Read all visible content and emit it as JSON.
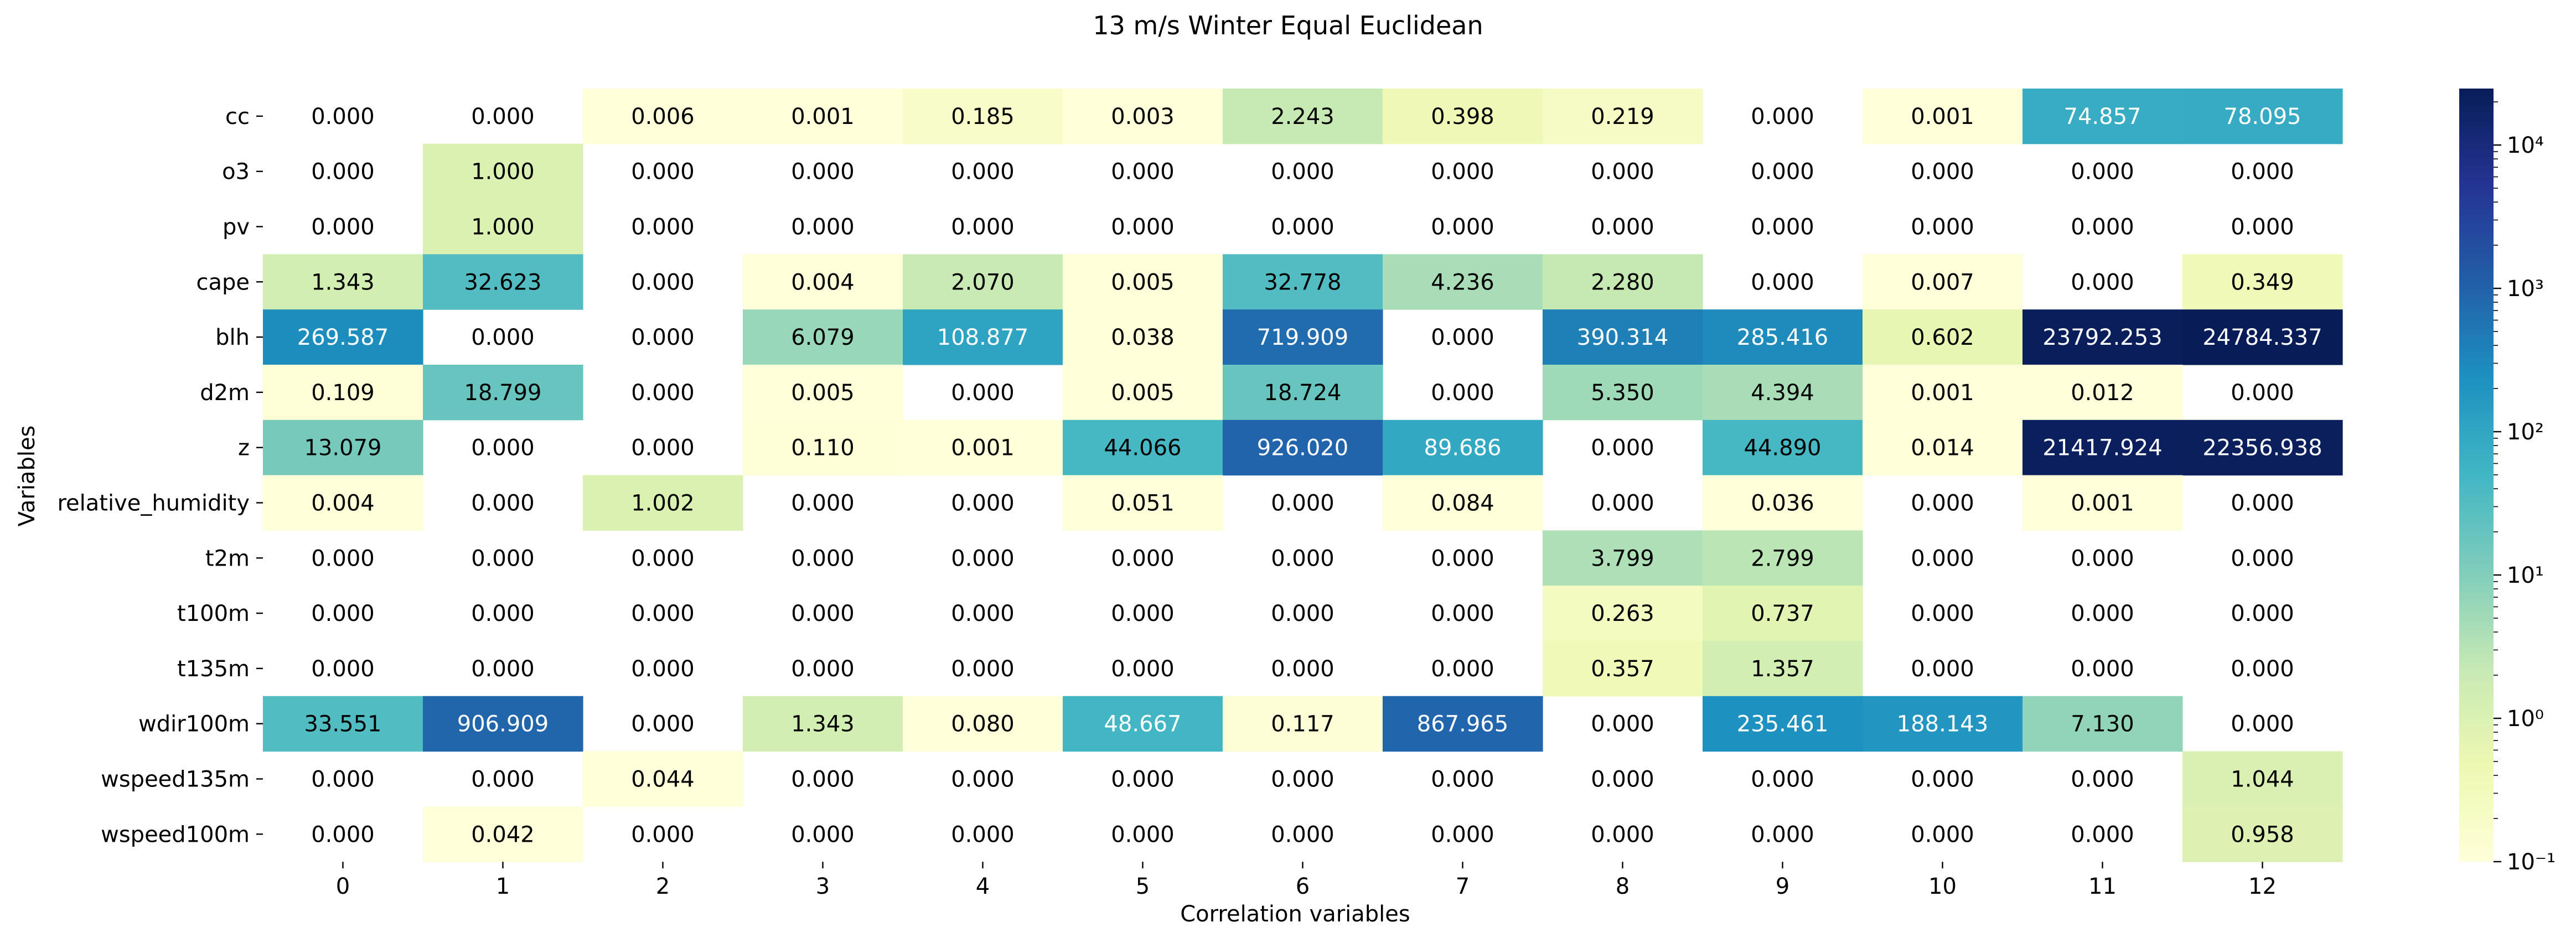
{
  "chart_data": {
    "type": "heatmap",
    "title": "13 m/s Winter Equal Euclidean",
    "xlabel": "Correlation variables",
    "ylabel": "Variables",
    "x_categories": [
      "0",
      "1",
      "2",
      "3",
      "4",
      "5",
      "6",
      "7",
      "8",
      "9",
      "10",
      "11",
      "12"
    ],
    "y_categories": [
      "cc",
      "o3",
      "pv",
      "cape",
      "blh",
      "d2m",
      "z",
      "relative_humidity",
      "t2m",
      "t100m",
      "t135m",
      "wdir100m",
      "wspeed135m",
      "wspeed100m"
    ],
    "values": [
      [
        0.0,
        0.0,
        0.006,
        0.001,
        0.185,
        0.003,
        2.243,
        0.398,
        0.219,
        0.0,
        0.001,
        74.857,
        78.095
      ],
      [
        0.0,
        1.0,
        0.0,
        0.0,
        0.0,
        0.0,
        0.0,
        0.0,
        0.0,
        0.0,
        0.0,
        0.0,
        0.0
      ],
      [
        0.0,
        1.0,
        0.0,
        0.0,
        0.0,
        0.0,
        0.0,
        0.0,
        0.0,
        0.0,
        0.0,
        0.0,
        0.0
      ],
      [
        1.343,
        32.623,
        0.0,
        0.004,
        2.07,
        0.005,
        32.778,
        4.236,
        2.28,
        0.0,
        0.007,
        0.0,
        0.349
      ],
      [
        269.587,
        0.0,
        0.0,
        6.079,
        108.877,
        0.038,
        719.909,
        0.0,
        390.314,
        285.416,
        0.602,
        23792.253,
        24784.337
      ],
      [
        0.109,
        18.799,
        0.0,
        0.005,
        0.0,
        0.005,
        18.724,
        0.0,
        5.35,
        4.394,
        0.001,
        0.012,
        0.0
      ],
      [
        13.079,
        0.0,
        0.0,
        0.11,
        0.001,
        44.066,
        926.02,
        89.686,
        0.0,
        44.89,
        0.014,
        21417.924,
        22356.938
      ],
      [
        0.004,
        0.0,
        1.002,
        0.0,
        0.0,
        0.051,
        0.0,
        0.084,
        0.0,
        0.036,
        0.0,
        0.001,
        0.0
      ],
      [
        0.0,
        0.0,
        0.0,
        0.0,
        0.0,
        0.0,
        0.0,
        0.0,
        3.799,
        2.799,
        0.0,
        0.0,
        0.0
      ],
      [
        0.0,
        0.0,
        0.0,
        0.0,
        0.0,
        0.0,
        0.0,
        0.0,
        0.263,
        0.737,
        0.0,
        0.0,
        0.0
      ],
      [
        0.0,
        0.0,
        0.0,
        0.0,
        0.0,
        0.0,
        0.0,
        0.0,
        0.357,
        1.357,
        0.0,
        0.0,
        0.0
      ],
      [
        33.551,
        906.909,
        0.0,
        1.343,
        0.08,
        48.667,
        0.117,
        867.965,
        0.0,
        235.461,
        188.143,
        7.13,
        0.0
      ],
      [
        0.0,
        0.0,
        0.044,
        0.0,
        0.0,
        0.0,
        0.0,
        0.0,
        0.0,
        0.0,
        0.0,
        0.0,
        1.044
      ],
      [
        0.0,
        0.042,
        0.0,
        0.0,
        0.0,
        0.0,
        0.0,
        0.0,
        0.0,
        0.0,
        0.0,
        0.0,
        0.958
      ]
    ],
    "value_format": "3 decimals",
    "colorbar": {
      "scale": "log",
      "colormap": "YlGnBu",
      "range": [
        0.1,
        24784.337
      ],
      "ticks": [
        0.1,
        1,
        10,
        100,
        1000,
        10000
      ],
      "tick_labels": [
        "10⁻¹",
        "10⁰",
        "10¹",
        "10²",
        "10³",
        "10⁴"
      ]
    },
    "empty_cells": "values equal to 0 are not colored (white background)",
    "grid": false,
    "legend": "colorbar right"
  }
}
